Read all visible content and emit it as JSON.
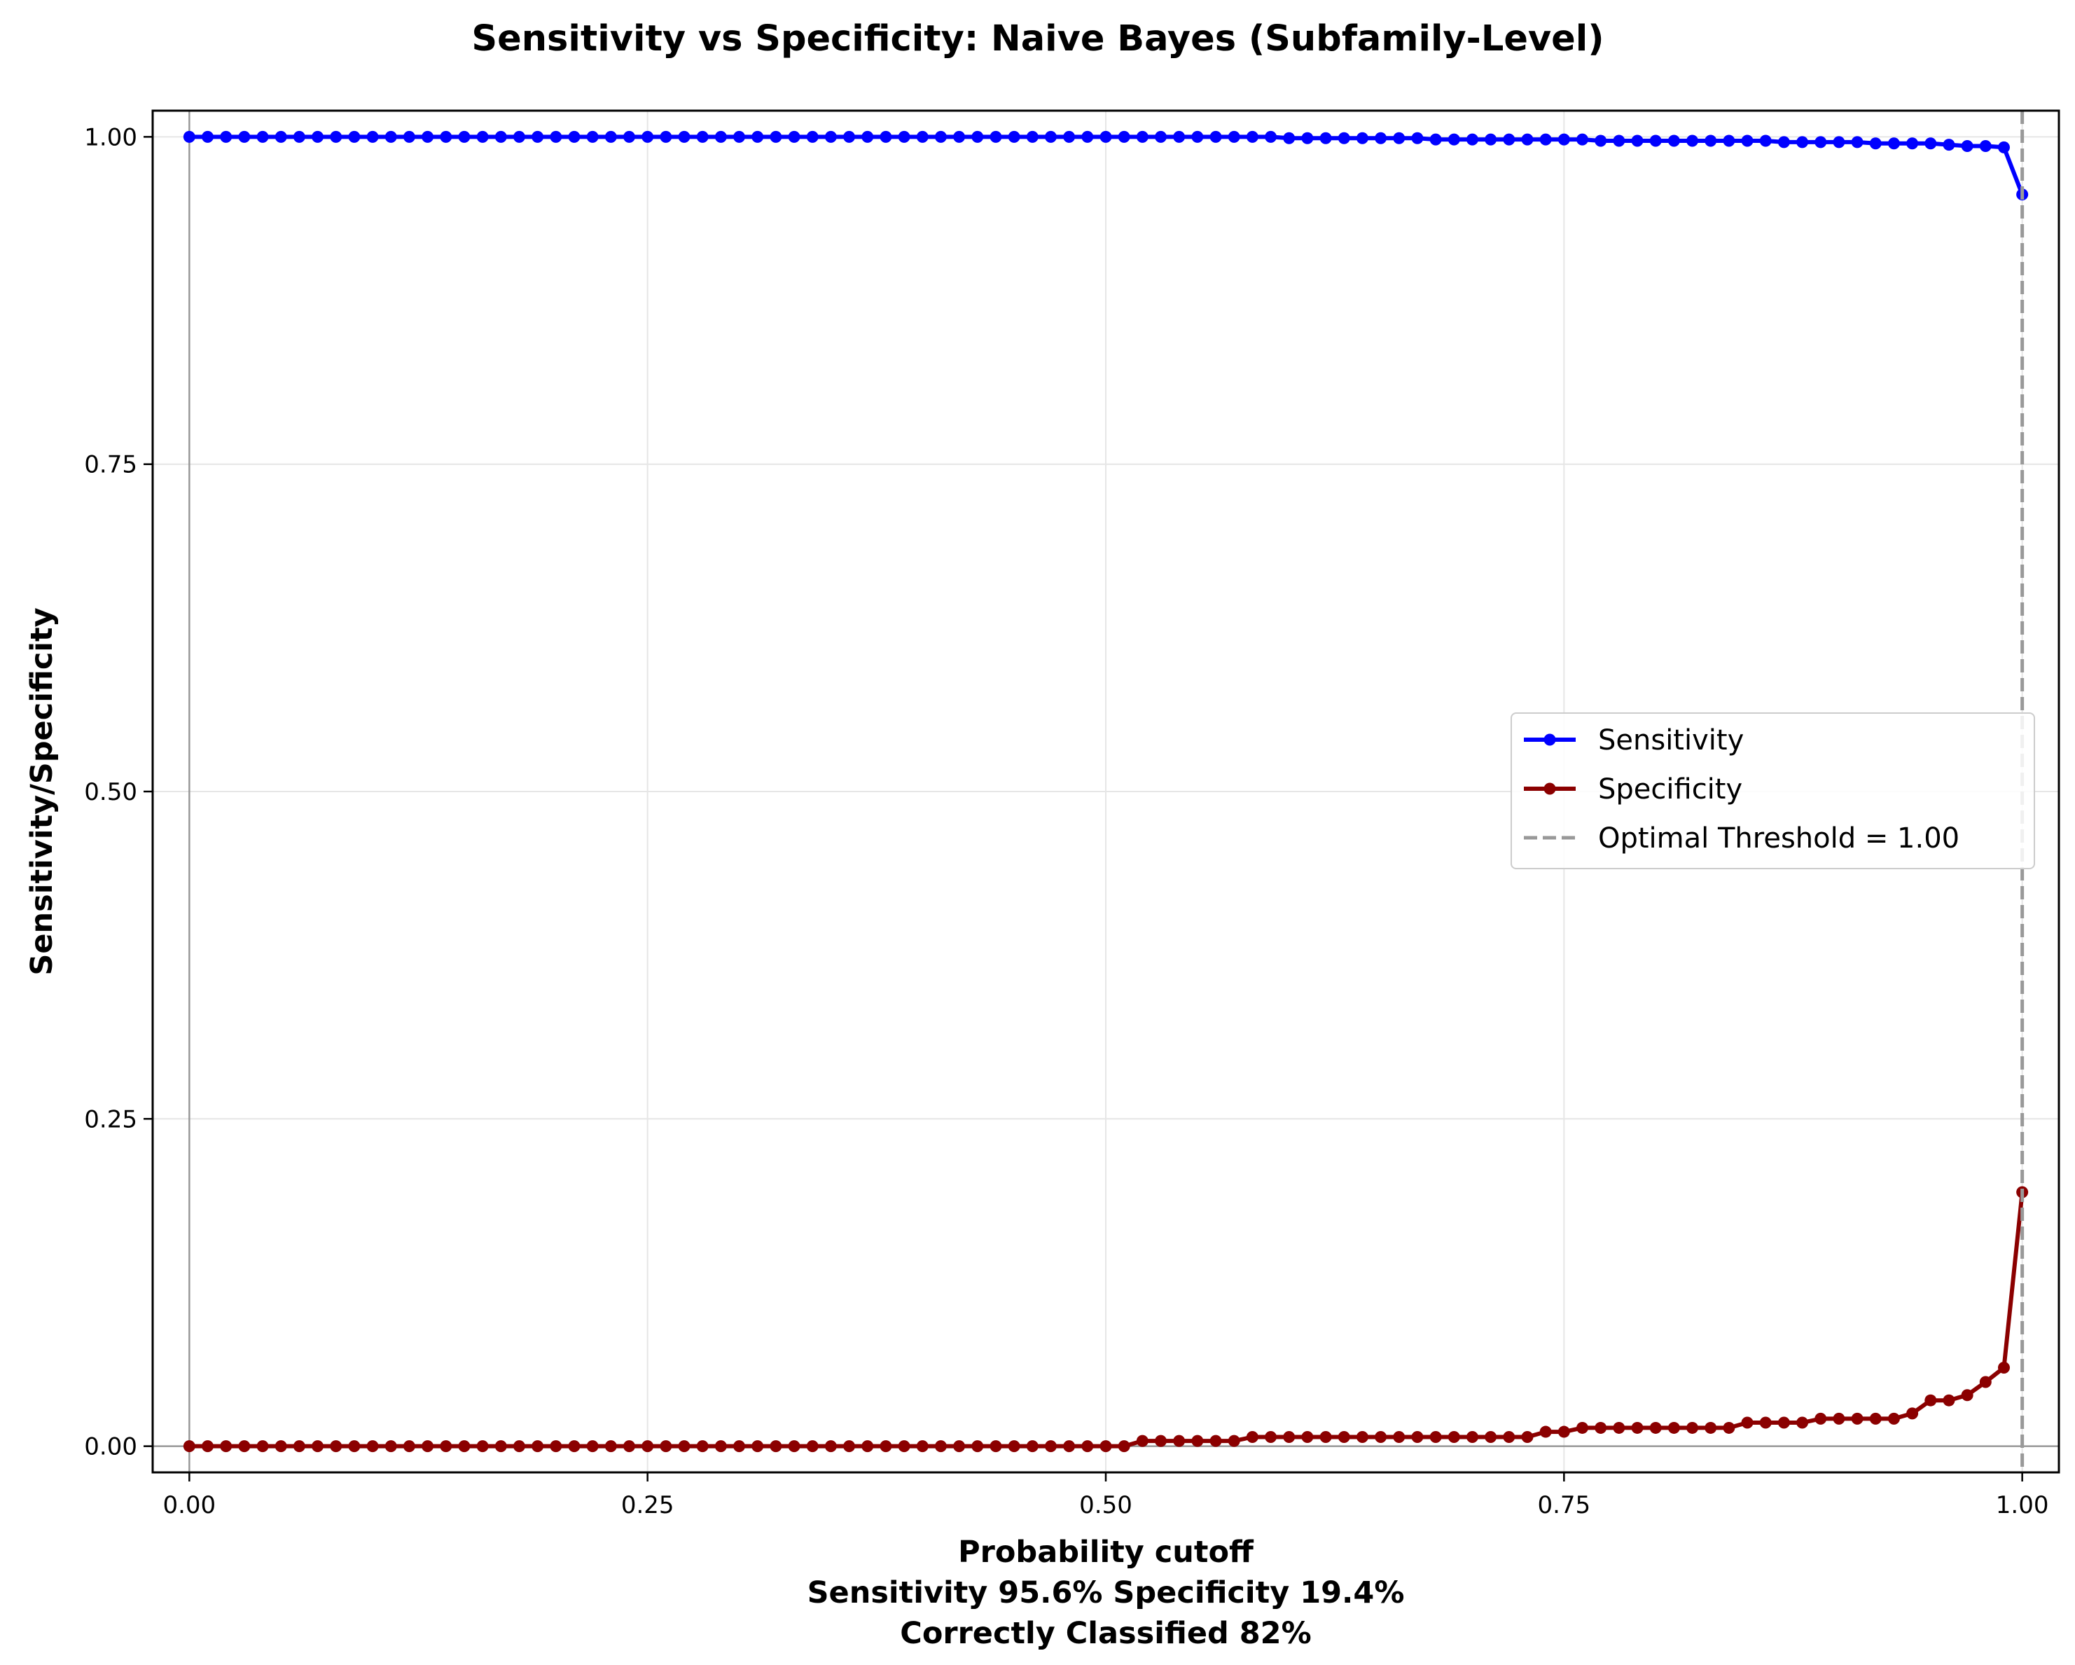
{
  "chart_data": {
    "type": "line",
    "title": "Sensitivity vs Specificity: Naive Bayes (Subfamily-Level)",
    "xlabel": "Probability cutoff",
    "xlabel_lines": [
      "Sensitivity 95.6% Specificity 19.4%",
      "Correctly Classified 82%"
    ],
    "ylabel": "Sensitivity/Specificity",
    "xlim": [
      -0.02,
      1.02
    ],
    "ylim": [
      -0.02,
      1.02
    ],
    "xticks": [
      "0.00",
      "0.25",
      "0.50",
      "0.75",
      "1.00"
    ],
    "yticks": [
      "0.00",
      "0.25",
      "0.50",
      "0.75",
      "1.00"
    ],
    "grid": true,
    "legend_position": "center-right",
    "optimal_threshold": 1.0,
    "series": [
      {
        "name": "Sensitivity",
        "color": "#0000ff",
        "x": [
          0.0,
          0.01,
          0.02,
          0.03,
          0.04,
          0.05,
          0.06,
          0.07,
          0.08,
          0.09,
          0.1,
          0.11,
          0.12,
          0.13,
          0.14,
          0.15,
          0.16,
          0.17,
          0.18,
          0.19,
          0.2,
          0.21,
          0.22,
          0.23,
          0.24,
          0.25,
          0.26,
          0.27,
          0.28,
          0.29,
          0.3,
          0.31,
          0.32,
          0.33,
          0.34,
          0.35,
          0.36,
          0.37,
          0.38,
          0.39,
          0.4,
          0.41,
          0.42,
          0.43,
          0.44,
          0.45,
          0.46,
          0.47,
          0.48,
          0.49,
          0.5,
          0.51,
          0.52,
          0.53,
          0.54,
          0.55,
          0.56,
          0.57,
          0.58,
          0.59,
          0.6,
          0.61,
          0.62,
          0.63,
          0.64,
          0.65,
          0.66,
          0.67,
          0.68,
          0.69,
          0.7,
          0.71,
          0.72,
          0.73,
          0.74,
          0.75,
          0.76,
          0.77,
          0.78,
          0.79,
          0.8,
          0.81,
          0.82,
          0.83,
          0.84,
          0.85,
          0.86,
          0.87,
          0.88,
          0.89,
          0.9,
          0.91,
          0.92,
          0.93,
          0.94,
          0.95,
          0.96,
          0.97,
          0.98,
          0.99,
          1.0
        ],
        "values": [
          1.0,
          1.0,
          1.0,
          1.0,
          1.0,
          1.0,
          1.0,
          1.0,
          1.0,
          1.0,
          1.0,
          1.0,
          1.0,
          1.0,
          1.0,
          1.0,
          1.0,
          1.0,
          1.0,
          1.0,
          1.0,
          1.0,
          1.0,
          1.0,
          1.0,
          1.0,
          1.0,
          1.0,
          1.0,
          1.0,
          1.0,
          1.0,
          1.0,
          1.0,
          1.0,
          1.0,
          1.0,
          1.0,
          1.0,
          1.0,
          1.0,
          1.0,
          1.0,
          1.0,
          1.0,
          1.0,
          1.0,
          1.0,
          1.0,
          1.0,
          1.0,
          1.0,
          1.0,
          1.0,
          1.0,
          1.0,
          1.0,
          1.0,
          1.0,
          1.0,
          0.999,
          0.999,
          0.999,
          0.999,
          0.999,
          0.999,
          0.999,
          0.999,
          0.998,
          0.998,
          0.998,
          0.998,
          0.998,
          0.998,
          0.998,
          0.998,
          0.998,
          0.997,
          0.997,
          0.997,
          0.997,
          0.997,
          0.997,
          0.997,
          0.997,
          0.997,
          0.997,
          0.996,
          0.996,
          0.996,
          0.996,
          0.996,
          0.995,
          0.995,
          0.995,
          0.995,
          0.994,
          0.993,
          0.993,
          0.992,
          0.956
        ]
      },
      {
        "name": "Specificity",
        "color": "#8b0000",
        "x": [
          0.0,
          0.01,
          0.02,
          0.03,
          0.04,
          0.05,
          0.06,
          0.07,
          0.08,
          0.09,
          0.1,
          0.11,
          0.12,
          0.13,
          0.14,
          0.15,
          0.16,
          0.17,
          0.18,
          0.19,
          0.2,
          0.21,
          0.22,
          0.23,
          0.24,
          0.25,
          0.26,
          0.27,
          0.28,
          0.29,
          0.3,
          0.31,
          0.32,
          0.33,
          0.34,
          0.35,
          0.36,
          0.37,
          0.38,
          0.39,
          0.4,
          0.41,
          0.42,
          0.43,
          0.44,
          0.45,
          0.46,
          0.47,
          0.48,
          0.49,
          0.5,
          0.51,
          0.52,
          0.53,
          0.54,
          0.55,
          0.56,
          0.57,
          0.58,
          0.59,
          0.6,
          0.61,
          0.62,
          0.63,
          0.64,
          0.65,
          0.66,
          0.67,
          0.68,
          0.69,
          0.7,
          0.71,
          0.72,
          0.73,
          0.74,
          0.75,
          0.76,
          0.77,
          0.78,
          0.79,
          0.8,
          0.81,
          0.82,
          0.83,
          0.84,
          0.85,
          0.86,
          0.87,
          0.88,
          0.89,
          0.9,
          0.91,
          0.92,
          0.93,
          0.94,
          0.95,
          0.96,
          0.97,
          0.98,
          0.99,
          1.0
        ],
        "values": [
          0.0,
          0.0,
          0.0,
          0.0,
          0.0,
          0.0,
          0.0,
          0.0,
          0.0,
          0.0,
          0.0,
          0.0,
          0.0,
          0.0,
          0.0,
          0.0,
          0.0,
          0.0,
          0.0,
          0.0,
          0.0,
          0.0,
          0.0,
          0.0,
          0.0,
          0.0,
          0.0,
          0.0,
          0.0,
          0.0,
          0.0,
          0.0,
          0.0,
          0.0,
          0.0,
          0.0,
          0.0,
          0.0,
          0.0,
          0.0,
          0.0,
          0.0,
          0.0,
          0.0,
          0.0,
          0.0,
          0.0,
          0.0,
          0.0,
          0.0,
          0.0,
          0.0,
          0.004,
          0.004,
          0.004,
          0.004,
          0.004,
          0.004,
          0.007,
          0.007,
          0.007,
          0.007,
          0.007,
          0.007,
          0.007,
          0.007,
          0.007,
          0.007,
          0.007,
          0.007,
          0.007,
          0.007,
          0.007,
          0.007,
          0.011,
          0.011,
          0.014,
          0.014,
          0.014,
          0.014,
          0.014,
          0.014,
          0.014,
          0.014,
          0.014,
          0.018,
          0.018,
          0.018,
          0.018,
          0.021,
          0.021,
          0.021,
          0.021,
          0.021,
          0.025,
          0.035,
          0.035,
          0.039,
          0.049,
          0.06,
          0.194
        ]
      }
    ],
    "threshold_series_name": "Optimal Threshold = 1.00",
    "threshold_color": "#999999"
  }
}
